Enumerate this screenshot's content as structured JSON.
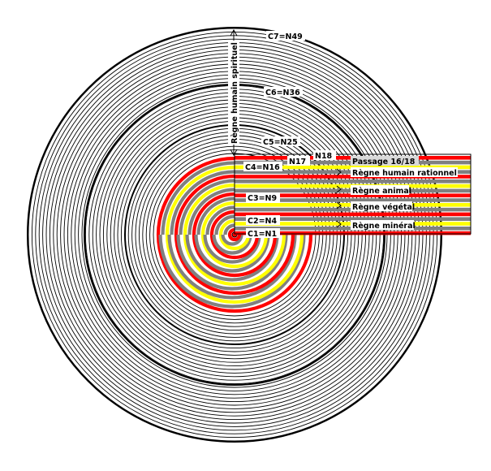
{
  "cycle_labels": [
    {
      "id": "c7",
      "text": "C7=N49"
    },
    {
      "id": "c6",
      "text": "C6=N36"
    },
    {
      "id": "c5",
      "text": "C5=N25"
    },
    {
      "id": "c4",
      "text": "C4=N16"
    },
    {
      "id": "c3",
      "text": "C3=N9"
    },
    {
      "id": "c2",
      "text": "C2=N4"
    },
    {
      "id": "c1",
      "text": "C1=N1"
    }
  ],
  "node_labels": [
    {
      "id": "n17",
      "text": "N17"
    },
    {
      "id": "n18",
      "text": "N18"
    }
  ],
  "realms": [
    {
      "id": "passage",
      "text": "Passage 16/18"
    },
    {
      "id": "humain-rationnel",
      "text": "Règne humain rationnel"
    },
    {
      "id": "animal",
      "text": "Règne animal"
    },
    {
      "id": "vegetal",
      "text": "Règne végétal"
    },
    {
      "id": "mineral",
      "text": "Règne minéral"
    }
  ],
  "vertical_label": "Règne humain spirituel",
  "colors": {
    "red": "#ff0000",
    "gray": "#808080",
    "yellow": "#ffff00",
    "black": "#000000",
    "white": "#ffffff"
  }
}
